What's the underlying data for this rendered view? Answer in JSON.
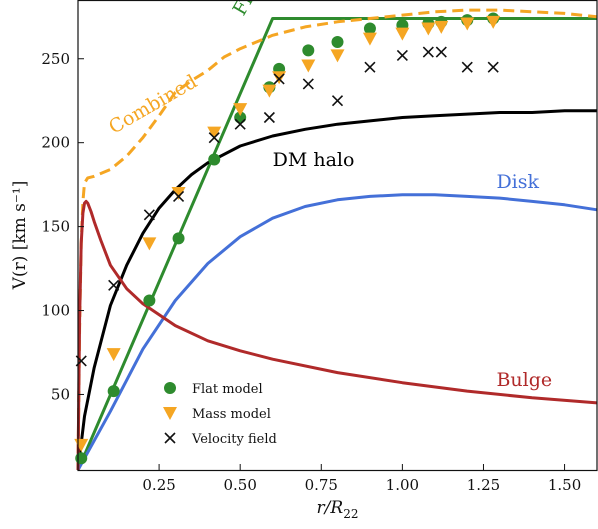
{
  "chart_data": {
    "type": "line",
    "xlabel_main": "r/R",
    "xlabel_sub": "22",
    "ylabel": "V(r) [km s⁻¹]",
    "xlim": [
      0,
      1.6
    ],
    "ylim": [
      5,
      285
    ],
    "xticks": [
      0.25,
      0.5,
      0.75,
      1.0,
      1.25,
      1.5
    ],
    "xtick_labels": [
      "0.25",
      "0.50",
      "0.75",
      "1.00",
      "1.25",
      "1.50"
    ],
    "yticks": [
      50,
      100,
      150,
      200,
      250
    ],
    "ytick_labels": [
      "50",
      "100",
      "150",
      "200",
      "250"
    ],
    "grid": false,
    "legend_position": "lower-left",
    "series": [
      {
        "name": "Flat",
        "style": "line",
        "color": "#2e8b2e",
        "x": [
          0,
          0.6,
          1.6
        ],
        "y": [
          5,
          274,
          274
        ]
      },
      {
        "name": "Combined",
        "style": "dashed",
        "color": "#f5a623",
        "x": [
          0,
          0.005,
          0.01,
          0.015,
          0.02,
          0.03,
          0.05,
          0.1,
          0.15,
          0.2,
          0.25,
          0.3,
          0.35,
          0.4,
          0.45,
          0.5,
          0.6,
          0.7,
          0.8,
          0.9,
          1.0,
          1.1,
          1.2,
          1.3,
          1.4,
          1.5,
          1.6
        ],
        "y": [
          5,
          90,
          140,
          165,
          176,
          179,
          180,
          184,
          192,
          203,
          216,
          230,
          237,
          243,
          251,
          256,
          264,
          269,
          272,
          274,
          276,
          278,
          279,
          279,
          278,
          277,
          275
        ]
      },
      {
        "name": "DM halo",
        "style": "line",
        "color": "#000000",
        "x": [
          0,
          0.02,
          0.05,
          0.1,
          0.15,
          0.2,
          0.25,
          0.3,
          0.35,
          0.4,
          0.5,
          0.6,
          0.7,
          0.8,
          0.9,
          1.0,
          1.1,
          1.2,
          1.3,
          1.4,
          1.5,
          1.6
        ],
        "y": [
          5,
          37,
          66,
          103,
          127,
          146,
          161,
          172,
          181,
          188,
          198,
          204,
          208,
          211,
          213,
          215,
          216,
          217,
          218,
          218,
          219,
          219
        ]
      },
      {
        "name": "Disk",
        "style": "line",
        "color": "#4470d8",
        "x": [
          0,
          0.1,
          0.2,
          0.3,
          0.4,
          0.5,
          0.6,
          0.7,
          0.8,
          0.9,
          1.0,
          1.1,
          1.2,
          1.3,
          1.4,
          1.5,
          1.6
        ],
        "y": [
          5,
          40,
          77,
          106,
          128,
          144,
          155,
          162,
          166,
          168,
          169,
          169,
          168,
          167,
          165,
          163,
          160
        ]
      },
      {
        "name": "Bulge",
        "style": "line",
        "color": "#b02a2a",
        "x": [
          0,
          0.005,
          0.01,
          0.015,
          0.02,
          0.025,
          0.03,
          0.04,
          0.05,
          0.07,
          0.1,
          0.15,
          0.2,
          0.3,
          0.4,
          0.5,
          0.6,
          0.8,
          1.0,
          1.2,
          1.4,
          1.6
        ],
        "y": [
          5,
          95,
          140,
          158,
          164,
          165,
          164,
          159,
          153,
          142,
          127,
          113,
          104,
          91,
          82,
          76,
          71,
          63,
          57,
          52,
          48,
          45
        ]
      },
      {
        "name": "Flat model",
        "style": "marker-circle",
        "color": "#2e8b2e",
        "x": [
          0.01,
          0.11,
          0.22,
          0.31,
          0.42,
          0.5,
          0.59,
          0.62,
          0.71,
          0.8,
          0.9,
          1.0,
          1.08,
          1.12,
          1.2,
          1.28
        ],
        "y": [
          12,
          52,
          106,
          143,
          190,
          215,
          233,
          244,
          255,
          260,
          268,
          270,
          271,
          272,
          273,
          274
        ]
      },
      {
        "name": "Mass model",
        "style": "marker-triangle",
        "color": "#f5a623",
        "x": [
          0.01,
          0.11,
          0.22,
          0.31,
          0.42,
          0.5,
          0.59,
          0.62,
          0.71,
          0.8,
          0.9,
          1.0,
          1.08,
          1.12,
          1.2,
          1.28
        ],
        "y": [
          20,
          74,
          140,
          170,
          206,
          220,
          231,
          239,
          246,
          252,
          262,
          265,
          268,
          269,
          271,
          272
        ]
      },
      {
        "name": "Velocity field",
        "style": "marker-x",
        "color": "#111111",
        "x": [
          0.01,
          0.11,
          0.22,
          0.31,
          0.42,
          0.5,
          0.59,
          0.62,
          0.71,
          0.8,
          0.9,
          1.0,
          1.08,
          1.12,
          1.2,
          1.28
        ],
        "y": [
          70,
          115,
          157,
          168,
          203,
          211,
          215,
          238,
          235,
          225,
          245,
          252,
          254,
          254,
          245,
          245
        ]
      }
    ],
    "curve_labels": [
      {
        "text": "Flat",
        "series": "Flat",
        "x": 0.51,
        "y": 275,
        "rotate": -60
      },
      {
        "text": "Combined",
        "series": "Combined",
        "x": 0.11,
        "y": 205,
        "rotate": -30
      },
      {
        "text": "DM halo",
        "series": "DM halo",
        "x": 0.6,
        "y": 186,
        "rotate": 0
      },
      {
        "text": "Disk",
        "series": "Disk",
        "x": 1.29,
        "y": 173,
        "rotate": 0
      },
      {
        "text": "Bulge",
        "series": "Bulge",
        "x": 1.29,
        "y": 55,
        "rotate": 0
      }
    ],
    "legend": [
      "Flat model",
      "Mass model",
      "Velocity field"
    ]
  }
}
